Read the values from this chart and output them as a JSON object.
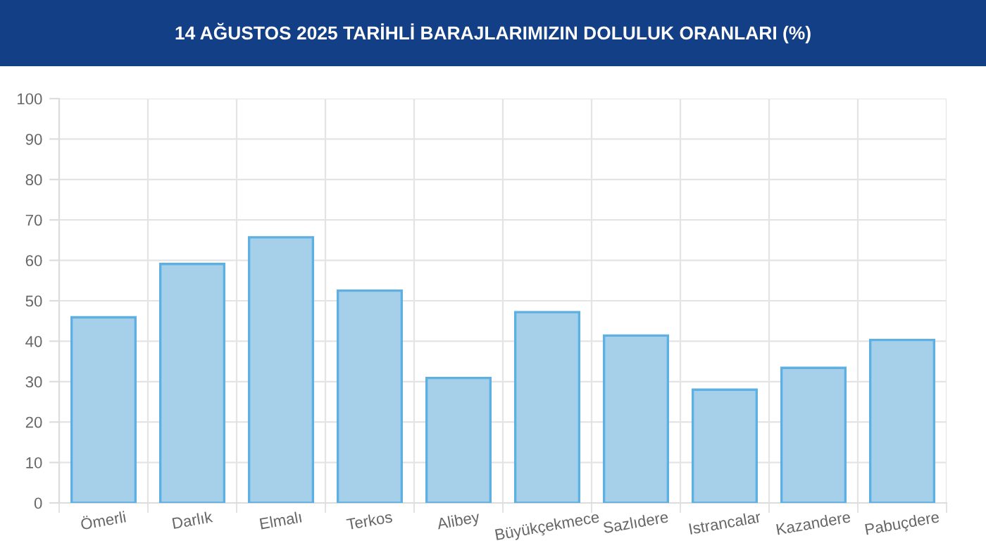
{
  "chart_data": {
    "type": "bar",
    "title": "14 AĞUSTOS 2025 TARİHLİ BARAJLARIMIZIN DOLULUK ORANLARI (%)",
    "categories": [
      "Ömerli",
      "Darlık",
      "Elmalı",
      "Terkos",
      "Alibey",
      "Büyükçekmece",
      "Sazlıdere",
      "Istrancalar",
      "Kazandere",
      "Pabuçdere"
    ],
    "values": [
      45.9,
      59.1,
      65.7,
      52.5,
      30.9,
      47.2,
      41.4,
      28.0,
      33.4,
      40.3
    ],
    "color": "#a6cfea",
    "ylim": [
      0,
      100
    ],
    "yticks": [
      0,
      10,
      20,
      30,
      40,
      50,
      60,
      70,
      80,
      90,
      100
    ],
    "grid": true
  }
}
